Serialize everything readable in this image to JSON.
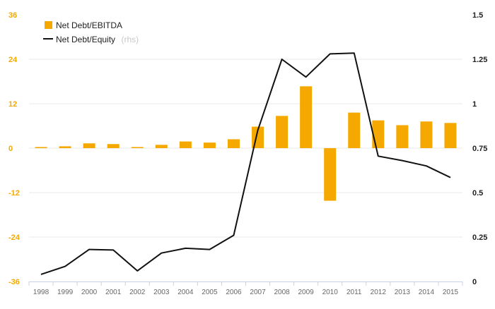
{
  "chart_data": {
    "type": "bar",
    "categories": [
      "1998",
      "1999",
      "2000",
      "2001",
      "2002",
      "2003",
      "2004",
      "2005",
      "2006",
      "2007",
      "2008",
      "2009",
      "2010",
      "2011",
      "2012",
      "2013",
      "2014",
      "2015"
    ],
    "series": [
      {
        "name": "Net Debt/EBITDA",
        "type": "bar",
        "axis": "left",
        "color": "#f5a800",
        "values": [
          0.3,
          0.5,
          1.3,
          1.1,
          0.3,
          0.9,
          1.8,
          1.5,
          2.4,
          5.8,
          8.7,
          16.7,
          -14.2,
          9.6,
          7.5,
          6.2,
          7.2,
          6.8
        ]
      },
      {
        "name": "Net Debt/Equity",
        "name_suffix": "(rhs)",
        "type": "line",
        "axis": "right",
        "color": "#111111",
        "values": [
          0.04,
          0.085,
          0.18,
          0.177,
          0.06,
          0.16,
          0.187,
          0.18,
          0.26,
          0.85,
          1.25,
          1.15,
          1.28,
          1.285,
          0.705,
          0.68,
          0.65,
          0.585
        ]
      }
    ],
    "ylim_left": [
      -36,
      36
    ],
    "yticks_left": [
      "36",
      "24",
      "12",
      "0",
      "-12",
      "-24",
      "-36"
    ],
    "ylim_right": [
      0,
      1.5
    ],
    "yticks_right": [
      "1.5",
      "1.25",
      "1",
      "0.75",
      "0.5",
      "0.25",
      "0"
    ],
    "grid": true,
    "legend_position": "top-left",
    "title": "",
    "xlabel": "",
    "ylabel": ""
  }
}
